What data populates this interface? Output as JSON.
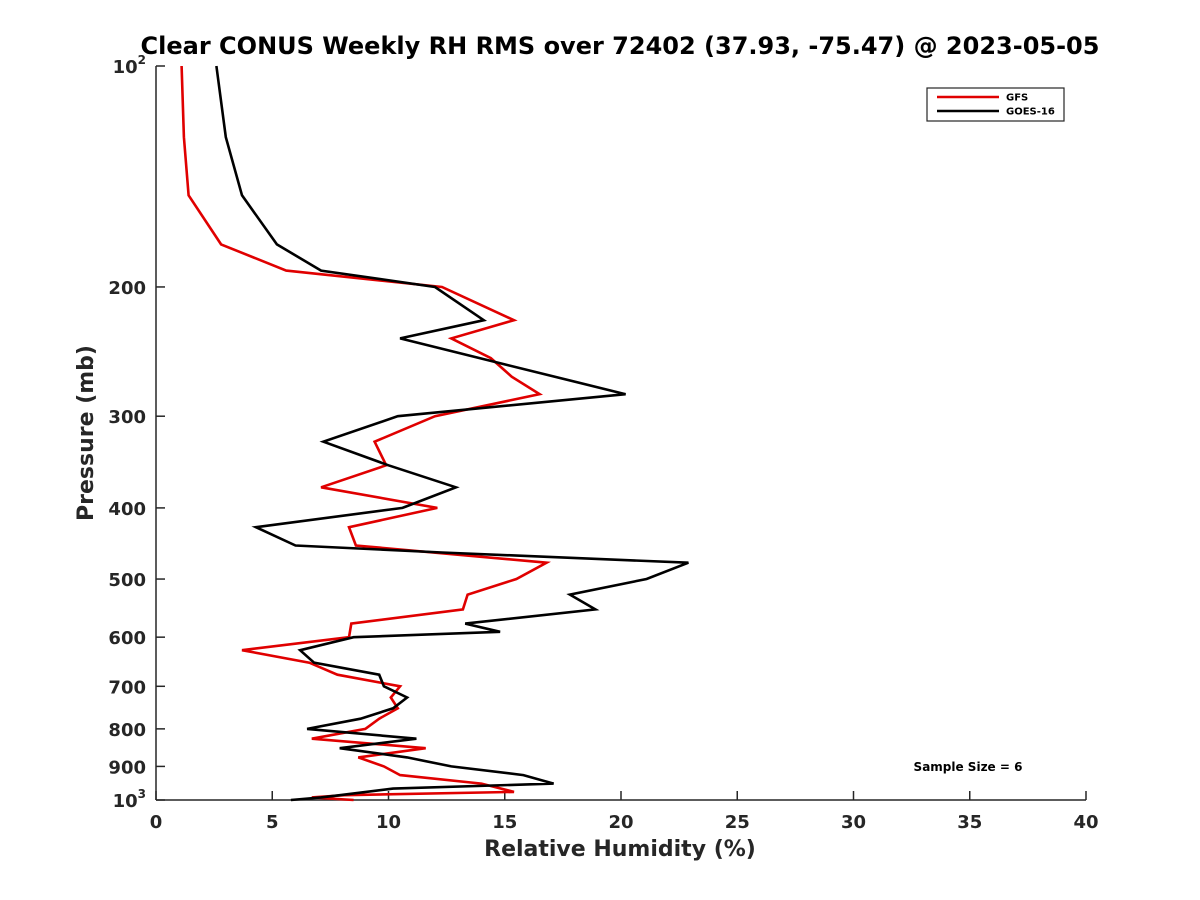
{
  "chart_data": {
    "type": "line",
    "title": "Clear CONUS Weekly RH RMS over 72402 (37.93, -75.47) @ 2023-05-05",
    "xlabel": "Relative Humidity (%)",
    "ylabel": "Pressure (mb)",
    "xlim": [
      0,
      40
    ],
    "ylim": [
      100,
      1000
    ],
    "yscale": "log",
    "y_reversed": true,
    "xticks": [
      "0",
      "5",
      "10",
      "15",
      "20",
      "25",
      "30",
      "35",
      "40"
    ],
    "yticks": [
      {
        "value": 100,
        "base": "10",
        "exp": "2"
      },
      {
        "value": 200,
        "label": "200"
      },
      {
        "value": 300,
        "label": "300"
      },
      {
        "value": 400,
        "label": "400"
      },
      {
        "value": 500,
        "label": "500"
      },
      {
        "value": 600,
        "label": "600"
      },
      {
        "value": 700,
        "label": "700"
      },
      {
        "value": 800,
        "label": "800"
      },
      {
        "value": 900,
        "label": "900"
      },
      {
        "value": 1000,
        "base": "10",
        "exp": "3"
      }
    ],
    "legend_position": "top-right",
    "annotation": "Sample Size = 6",
    "series": [
      {
        "name": "GFS",
        "color": "#e00000",
        "points": [
          [
            1.1,
            100
          ],
          [
            1.2,
            125
          ],
          [
            1.4,
            150
          ],
          [
            2.8,
            175
          ],
          [
            5.6,
            190
          ],
          [
            12.3,
            200
          ],
          [
            15.4,
            222
          ],
          [
            12.7,
            235
          ],
          [
            14.4,
            250
          ],
          [
            15.3,
            265
          ],
          [
            16.5,
            280
          ],
          [
            12.0,
            300
          ],
          [
            9.4,
            325
          ],
          [
            9.9,
            350
          ],
          [
            7.1,
            375
          ],
          [
            12.1,
            400
          ],
          [
            8.3,
            425
          ],
          [
            8.6,
            450
          ],
          [
            16.8,
            475
          ],
          [
            15.5,
            500
          ],
          [
            13.4,
            525
          ],
          [
            13.2,
            550
          ],
          [
            8.4,
            575
          ],
          [
            8.3,
            600
          ],
          [
            3.7,
            625
          ],
          [
            6.6,
            650
          ],
          [
            7.8,
            675
          ],
          [
            10.5,
            700
          ],
          [
            10.1,
            725
          ],
          [
            10.4,
            750
          ],
          [
            9.6,
            775
          ],
          [
            9.0,
            800
          ],
          [
            6.7,
            825
          ],
          [
            11.6,
            850
          ],
          [
            8.7,
            875
          ],
          [
            9.8,
            900
          ],
          [
            10.5,
            925
          ],
          [
            14.0,
            950
          ],
          [
            15.4,
            975
          ],
          [
            8.1,
            985
          ],
          [
            6.7,
            992
          ],
          [
            8.5,
            1000
          ]
        ]
      },
      {
        "name": "GOES-16",
        "color": "#000000",
        "points": [
          [
            2.6,
            100
          ],
          [
            3.0,
            125
          ],
          [
            3.7,
            150
          ],
          [
            5.2,
            175
          ],
          [
            7.1,
            190
          ],
          [
            12.0,
            200
          ],
          [
            14.1,
            222
          ],
          [
            10.5,
            235
          ],
          [
            15.0,
            255
          ],
          [
            20.2,
            280
          ],
          [
            10.4,
            300
          ],
          [
            7.2,
            325
          ],
          [
            10.0,
            350
          ],
          [
            12.9,
            375
          ],
          [
            10.6,
            400
          ],
          [
            4.3,
            425
          ],
          [
            6.0,
            450
          ],
          [
            12.3,
            460
          ],
          [
            22.9,
            475
          ],
          [
            21.1,
            500
          ],
          [
            17.8,
            525
          ],
          [
            18.9,
            550
          ],
          [
            13.3,
            575
          ],
          [
            14.8,
            590
          ],
          [
            8.5,
            600
          ],
          [
            6.2,
            625
          ],
          [
            6.8,
            650
          ],
          [
            9.6,
            675
          ],
          [
            9.8,
            700
          ],
          [
            10.8,
            725
          ],
          [
            10.2,
            750
          ],
          [
            8.8,
            775
          ],
          [
            6.5,
            800
          ],
          [
            11.2,
            825
          ],
          [
            7.9,
            850
          ],
          [
            10.8,
            875
          ],
          [
            12.7,
            900
          ],
          [
            15.8,
            925
          ],
          [
            17.1,
            950
          ],
          [
            10.2,
            965
          ],
          [
            7.9,
            985
          ],
          [
            7.1,
            992
          ],
          [
            5.8,
            1000
          ]
        ]
      }
    ]
  }
}
